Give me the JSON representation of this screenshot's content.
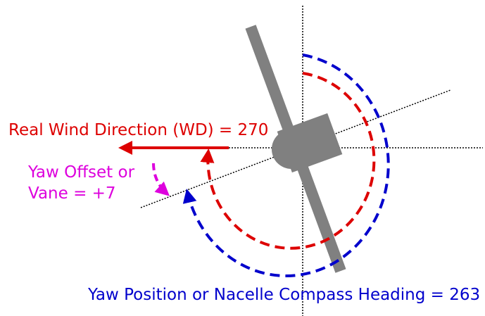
{
  "labels": {
    "wind_direction": "Real Wind Direction (WD) = 270",
    "yaw_offset_line1": "Yaw Offset or",
    "yaw_offset_line2": "Vane = +7",
    "yaw_position": "Yaw Position or Nacelle Compass Heading = 263"
  }
}
